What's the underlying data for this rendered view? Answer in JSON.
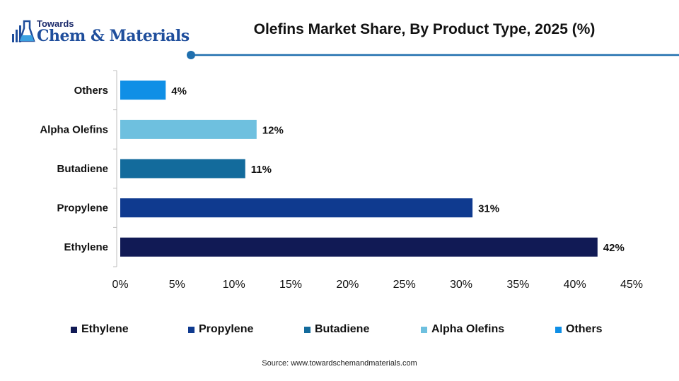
{
  "brand": {
    "line1": "Towards",
    "line2": "Chem & Materials",
    "icon": "flask-icon"
  },
  "chart_data": {
    "type": "bar",
    "orientation": "horizontal",
    "title": "Olefins Market Share, By Product Type, 2025 (%)",
    "categories": [
      "Others",
      "Alpha Olefins",
      "Butadiene",
      "Propylene",
      "Ethylene"
    ],
    "values": [
      4,
      12,
      11,
      31,
      42
    ],
    "value_labels": [
      "4%",
      "12%",
      "11%",
      "31%",
      "42%"
    ],
    "colors": [
      "#0f8fe6",
      "#6ec0df",
      "#136b9c",
      "#0f3a8f",
      "#111a55"
    ],
    "xlim": [
      0,
      45
    ],
    "x_ticks": [
      0,
      5,
      10,
      15,
      20,
      25,
      30,
      35,
      40,
      45
    ],
    "x_tick_labels": [
      "0%",
      "5%",
      "10%",
      "15%",
      "20%",
      "25%",
      "30%",
      "35%",
      "40%",
      "45%"
    ],
    "xlabel": "",
    "ylabel": "",
    "grid": false,
    "legend_position": "bottom",
    "legend": [
      {
        "name": "Ethylene",
        "color": "#111a55"
      },
      {
        "name": "Propylene",
        "color": "#0f3a8f"
      },
      {
        "name": "Butadiene",
        "color": "#136b9c"
      },
      {
        "name": "Alpha Olefins",
        "color": "#6ec0df"
      },
      {
        "name": "Others",
        "color": "#0f8fe6"
      }
    ]
  },
  "source": "Source: www.towardschemandmaterials.com",
  "accent_color": "#1f6fae"
}
